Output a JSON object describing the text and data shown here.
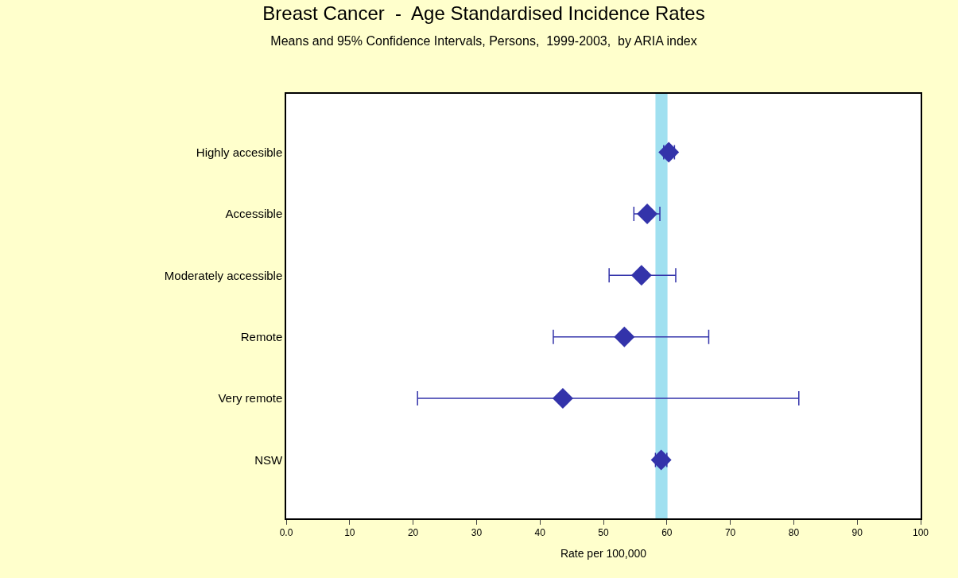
{
  "chart_data": {
    "type": "scatter",
    "title": "Breast Cancer  -  Age Standardised Incidence Rates",
    "subtitle": "Means and 95% Confidence Intervals, Persons,  1999-2003,  by ARIA index",
    "xlabel": "Rate per 100,000",
    "orientation": "horizontal",
    "categories": [
      "Highly accesible",
      "Accessible",
      "Moderately accessible",
      "Remote",
      "Very remote",
      "NSW"
    ],
    "series": [
      {
        "color": "#3333aa",
        "values": [
          60.3,
          56.9,
          56.0,
          53.3,
          43.6,
          59.1
        ],
        "errors": [
          [
            59.5,
            61.2
          ],
          [
            54.8,
            58.9
          ],
          [
            50.9,
            61.4
          ],
          [
            42.1,
            66.6
          ],
          [
            20.7,
            80.8
          ],
          [
            58.2,
            60.0
          ]
        ]
      }
    ],
    "xlim": [
      0,
      100
    ],
    "xticks": [
      {
        "value": 0,
        "label": "0.0"
      },
      10,
      20,
      30,
      40,
      50,
      60,
      70,
      80,
      90,
      100
    ],
    "bands": [
      {
        "axis": "x",
        "from": 58.2,
        "to": 60.1,
        "color": "#a0e0f0"
      }
    ],
    "marker": "diamond"
  }
}
